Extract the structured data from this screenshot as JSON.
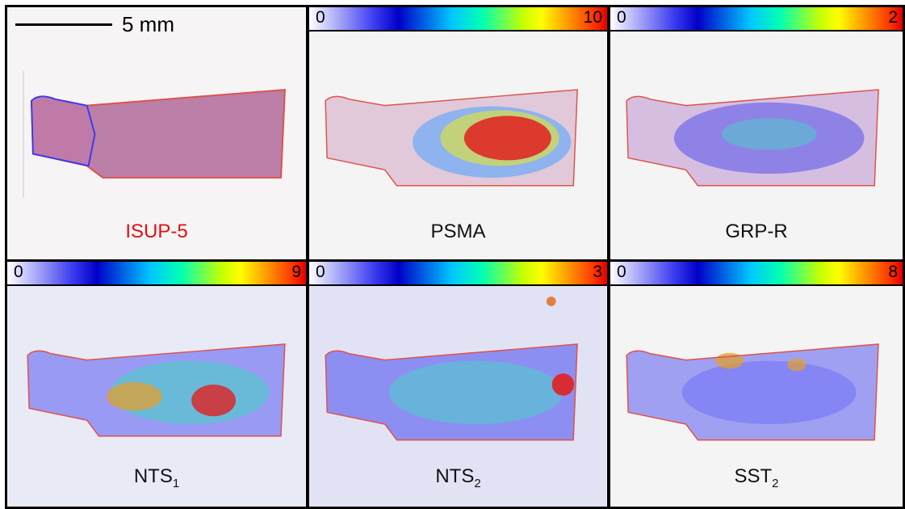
{
  "scale": {
    "label": "5 mm"
  },
  "panels": [
    {
      "id": "isup",
      "label": "ISUP-5",
      "label_color": "#e01010",
      "has_colorbar": false
    },
    {
      "id": "psma",
      "label": "PSMA",
      "colorbar": {
        "min": "0",
        "max": "10"
      }
    },
    {
      "id": "grpr",
      "label": "GRP-R",
      "colorbar": {
        "min": "0",
        "max": "2"
      }
    },
    {
      "id": "nts1",
      "label": "NTS",
      "sub": "1",
      "colorbar": {
        "min": "0",
        "max": "9"
      }
    },
    {
      "id": "nts2",
      "label": "NTS",
      "sub": "2",
      "colorbar": {
        "min": "0",
        "max": "3"
      }
    },
    {
      "id": "sst2",
      "label": "SST",
      "sub": "2",
      "colorbar": {
        "min": "0",
        "max": "8"
      }
    }
  ],
  "colors": {
    "tissue": "#b06a9a",
    "outline": "#e0504a",
    "hot": "#e02020",
    "scale_high": "#e00000",
    "scale_low": "#3a3af0"
  }
}
